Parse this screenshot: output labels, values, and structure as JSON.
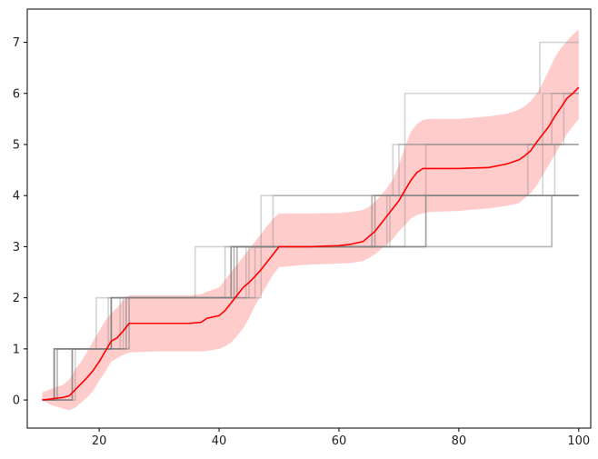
{
  "chart_data": {
    "type": "line",
    "title": "",
    "xlabel": "",
    "ylabel": "",
    "xlim": [
      8,
      102
    ],
    "ylim": [
      -0.55,
      7.65
    ],
    "x_ticks": [
      20,
      40,
      60,
      80,
      100
    ],
    "x_tick_labels": [
      "20",
      "40",
      "60",
      "80",
      "100"
    ],
    "y_ticks": [
      0,
      1,
      2,
      3,
      4,
      5,
      6,
      7
    ],
    "y_tick_labels": [
      "0",
      "1",
      "2",
      "3",
      "4",
      "5",
      "6",
      "7"
    ],
    "grid": false,
    "legend": "none",
    "colors": {
      "mean_line": "#ff0000",
      "band_fill": "#ff0000",
      "band_opacity": 0.2,
      "sample_line": "#808080",
      "sample_opacity": 0.35
    },
    "mean_line": {
      "x": [
        10.5,
        12,
        14,
        15,
        16,
        17,
        18,
        19,
        20,
        21,
        22,
        23,
        24,
        25,
        30,
        35,
        37,
        38,
        40,
        41,
        42,
        43,
        44,
        45,
        46,
        47,
        48,
        49,
        50,
        55,
        60,
        62,
        64,
        65,
        66,
        67,
        68,
        69,
        70,
        71,
        72,
        73,
        74,
        75,
        80,
        85,
        88,
        90,
        91,
        92,
        93,
        94,
        95,
        96,
        97,
        98,
        99,
        100
      ],
      "y": [
        0.0,
        0.02,
        0.05,
        0.08,
        0.2,
        0.32,
        0.44,
        0.58,
        0.75,
        0.95,
        1.15,
        1.22,
        1.35,
        1.5,
        1.5,
        1.5,
        1.52,
        1.6,
        1.65,
        1.75,
        1.9,
        2.05,
        2.2,
        2.3,
        2.42,
        2.55,
        2.7,
        2.85,
        3.0,
        3.0,
        3.02,
        3.05,
        3.1,
        3.2,
        3.3,
        3.45,
        3.6,
        3.75,
        3.9,
        4.1,
        4.3,
        4.45,
        4.53,
        4.53,
        4.53,
        4.55,
        4.62,
        4.7,
        4.78,
        4.88,
        5.05,
        5.2,
        5.35,
        5.55,
        5.72,
        5.9,
        6.0,
        6.12
      ]
    },
    "band": {
      "x": [
        10.5,
        12,
        14,
        15,
        16,
        17,
        18,
        19,
        20,
        21,
        22,
        23,
        24,
        25,
        30,
        35,
        37,
        38,
        40,
        41,
        42,
        43,
        44,
        45,
        46,
        47,
        48,
        49,
        50,
        55,
        60,
        62,
        64,
        65,
        66,
        67,
        68,
        69,
        70,
        71,
        72,
        73,
        74,
        75,
        80,
        85,
        88,
        90,
        91,
        92,
        93,
        94,
        95,
        96,
        97,
        98,
        99,
        100
      ],
      "lower": [
        0.0,
        -0.1,
        -0.17,
        -0.2,
        -0.15,
        -0.05,
        0.05,
        0.18,
        0.38,
        0.55,
        0.75,
        0.82,
        0.88,
        0.93,
        0.95,
        0.95,
        0.95,
        0.96,
        1.0,
        1.05,
        1.12,
        1.25,
        1.4,
        1.6,
        1.85,
        2.05,
        2.25,
        2.45,
        2.6,
        2.65,
        2.67,
        2.68,
        2.72,
        2.78,
        2.85,
        2.95,
        3.05,
        3.15,
        3.3,
        3.42,
        3.55,
        3.62,
        3.65,
        3.68,
        3.7,
        3.75,
        3.8,
        3.85,
        3.95,
        4.05,
        4.2,
        4.4,
        4.6,
        4.8,
        5.0,
        5.2,
        5.35,
        5.5
      ],
      "upper": [
        0.15,
        0.22,
        0.3,
        0.4,
        0.6,
        0.75,
        0.95,
        1.15,
        1.35,
        1.55,
        1.7,
        1.8,
        1.95,
        2.05,
        2.05,
        2.05,
        2.07,
        2.12,
        2.2,
        2.35,
        2.5,
        2.65,
        2.8,
        2.95,
        3.1,
        3.25,
        3.4,
        3.55,
        3.65,
        3.65,
        3.66,
        3.68,
        3.72,
        3.78,
        3.88,
        4.0,
        4.15,
        4.32,
        4.6,
        4.95,
        5.25,
        5.4,
        5.48,
        5.5,
        5.5,
        5.55,
        5.6,
        5.68,
        5.75,
        5.85,
        6.0,
        6.2,
        6.45,
        6.7,
        6.88,
        7.02,
        7.15,
        7.25
      ]
    },
    "sample_lines": [
      {
        "steps_x": [
          10.5,
          15.5,
          19.5,
          43,
          47,
          71,
          93.5,
          100
        ],
        "steps_y": [
          0,
          1,
          2,
          3,
          4,
          6,
          7,
          7
        ]
      },
      {
        "steps_x": [
          10.5,
          12.5,
          22,
          42.5,
          49,
          69,
          94,
          100
        ],
        "steps_y": [
          0,
          1,
          2,
          3,
          4,
          5,
          6,
          6
        ]
      },
      {
        "steps_x": [
          10.5,
          13,
          24,
          45,
          65.5,
          74.5,
          95.5,
          100
        ],
        "steps_y": [
          0,
          1,
          2,
          3,
          4,
          5,
          6,
          6
        ]
      },
      {
        "steps_x": [
          10.5,
          12.5,
          25,
          43,
          66,
          70,
          97.5,
          100
        ],
        "steps_y": [
          0,
          1,
          2,
          3,
          4,
          5,
          6,
          6
        ]
      },
      {
        "steps_x": [
          10.5,
          12.5,
          22,
          42,
          74.5,
          94,
          100
        ],
        "steps_y": [
          0,
          1,
          2,
          3,
          4,
          5,
          5
        ]
      },
      {
        "steps_x": [
          10.5,
          15.5,
          22,
          46,
          68,
          91.5,
          100
        ],
        "steps_y": [
          0,
          1,
          2,
          3,
          4,
          5,
          5
        ]
      },
      {
        "steps_x": [
          10.5,
          16,
          23.5,
          44.5,
          71,
          96,
          100
        ],
        "steps_y": [
          0,
          1,
          2,
          3,
          4,
          5,
          5
        ]
      },
      {
        "steps_x": [
          10.5,
          12.5,
          21.5,
          36,
          66,
          100
        ],
        "steps_y": [
          0,
          1,
          2,
          3,
          4,
          4
        ]
      },
      {
        "steps_x": [
          10.5,
          12.5,
          22,
          47,
          95.5,
          100
        ],
        "steps_y": [
          0,
          1,
          2,
          3,
          4,
          4
        ]
      },
      {
        "steps_x": [
          10.5,
          15.5,
          24.5,
          42,
          65.5,
          100
        ],
        "steps_y": [
          0,
          1,
          2,
          3,
          4,
          4
        ]
      },
      {
        "steps_x": [
          10.5,
          13,
          22,
          42,
          74.5,
          100
        ],
        "steps_y": [
          0,
          1,
          2,
          3,
          4,
          4
        ]
      },
      {
        "steps_x": [
          10.5,
          12.5,
          25,
          41,
          74.5,
          100
        ],
        "steps_y": [
          0,
          1,
          2,
          3,
          4,
          4
        ]
      },
      {
        "steps_x": [
          10.5,
          12.5,
          22,
          42.5,
          68.5,
          100
        ],
        "steps_y": [
          0,
          1,
          2,
          3,
          4,
          4
        ]
      },
      {
        "steps_x": [
          10.5,
          15.5,
          24.5,
          42,
          95.5,
          100
        ],
        "steps_y": [
          0,
          1,
          2,
          3,
          4,
          4
        ]
      }
    ]
  }
}
